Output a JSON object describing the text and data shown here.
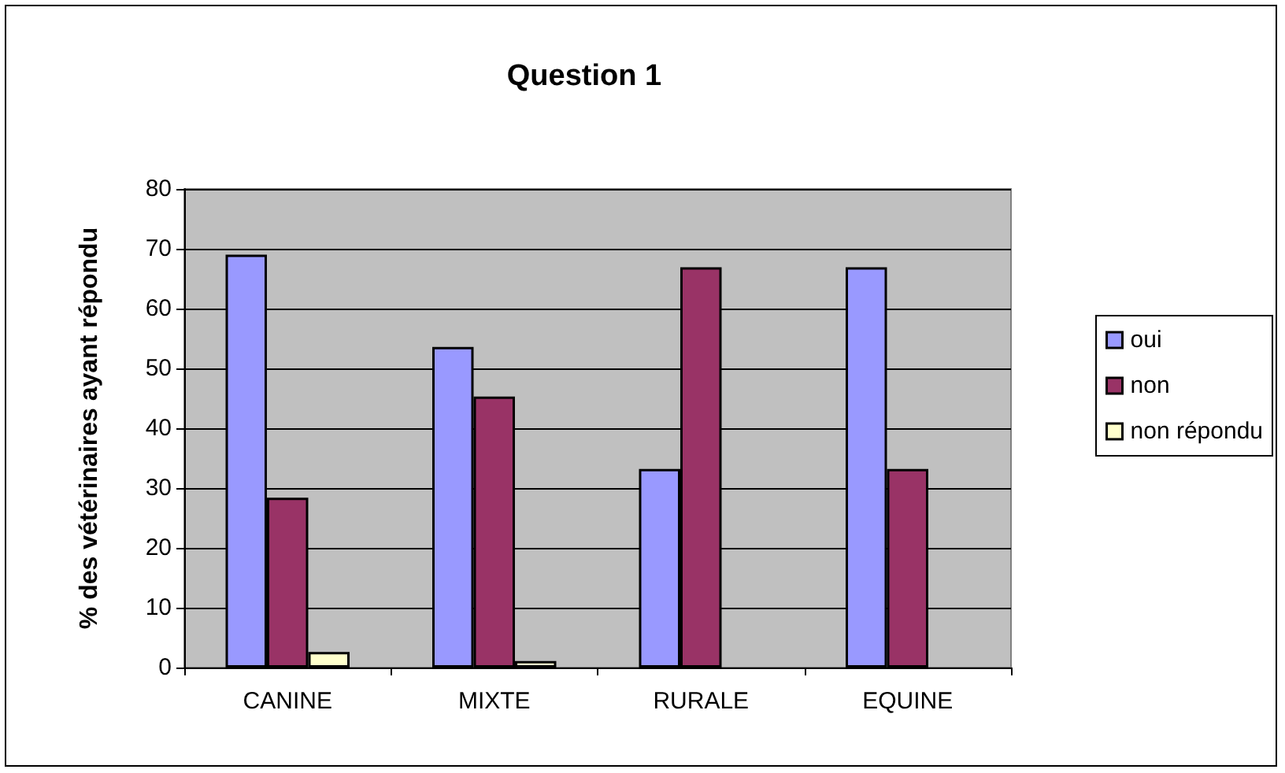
{
  "chart_data": {
    "type": "bar",
    "title": "Question 1",
    "ylabel": "% des vétérinaires ayant répondu",
    "categories": [
      "CANINE",
      "MIXTE",
      "RURALE",
      "EQUINE"
    ],
    "series": [
      {
        "name": "oui",
        "color": "#9999ff",
        "values": [
          69,
          53.6,
          33.2,
          66.9
        ]
      },
      {
        "name": "non",
        "color": "#993366",
        "values": [
          28.4,
          45.3,
          66.9,
          33.2
        ]
      },
      {
        "name": "non répondu",
        "color": "#ffffcc",
        "values": [
          2.6,
          1.1,
          null,
          null
        ]
      }
    ],
    "ylim": [
      0,
      80
    ],
    "yticks": [
      0,
      10,
      20,
      30,
      40,
      50,
      60,
      70,
      80
    ],
    "grid": "y",
    "legend": "right"
  }
}
